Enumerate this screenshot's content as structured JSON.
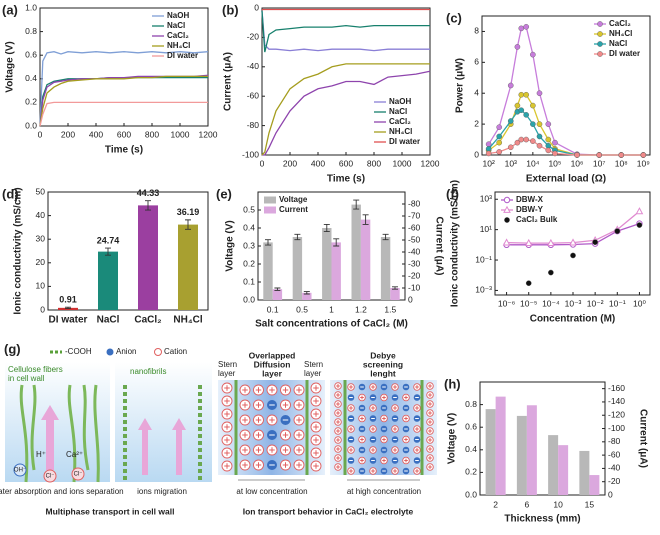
{
  "chart_data": [
    {
      "type": "line",
      "label": "(a)",
      "xlabel": "Time (s)",
      "ylabel": "Voltage (V)",
      "x": [
        0,
        20,
        50,
        100,
        150,
        200,
        300,
        400,
        500,
        600,
        700,
        800,
        900,
        1000,
        1100,
        1200
      ],
      "series": [
        {
          "name": "NaOH",
          "color": "#7f9fd6",
          "values": [
            0,
            0.55,
            0.62,
            0.63,
            0.61,
            0.63,
            0.62,
            0.63,
            0.62,
            0.63,
            0.62,
            0.63,
            0.62,
            0.63,
            0.62,
            0.63
          ]
        },
        {
          "name": "NaCl",
          "color": "#17806d",
          "values": [
            0,
            0.25,
            0.35,
            0.38,
            0.39,
            0.4,
            0.4,
            0.4,
            0.41,
            0.41,
            0.41,
            0.41,
            0.41,
            0.41,
            0.41,
            0.41
          ]
        },
        {
          "name": "CaCl₂",
          "color": "#8e44ad",
          "values": [
            0,
            0.22,
            0.33,
            0.37,
            0.38,
            0.39,
            0.4,
            0.4,
            0.41,
            0.41,
            0.42,
            0.42,
            0.42,
            0.42,
            0.42,
            0.43
          ]
        },
        {
          "name": "NH₄Cl",
          "color": "#a59d1e",
          "values": [
            0,
            0.15,
            0.28,
            0.33,
            0.36,
            0.38,
            0.39,
            0.4,
            0.4,
            0.4,
            0.41,
            0.41,
            0.42,
            0.42,
            0.42,
            0.42
          ]
        },
        {
          "name": "DI water",
          "color": "#f29a9a",
          "values": [
            0,
            0.1,
            0.19,
            0.2,
            0.2,
            0.2,
            0.2,
            0.2,
            0.2,
            0.2,
            0.2,
            0.2,
            0.2,
            0.2,
            0.2,
            0.2
          ]
        }
      ],
      "xlim": [
        0,
        1200
      ],
      "xticks": [
        0,
        200,
        400,
        600,
        800,
        1000,
        1200
      ],
      "ylim": [
        0,
        1.0
      ],
      "yticks": [
        {
          "value": 0,
          "label": "0.0"
        },
        0.2,
        0.4,
        0.6,
        0.8,
        {
          "value": 1.0,
          "label": "1.0"
        }
      ],
      "legend": "upper right"
    },
    {
      "type": "line",
      "label": "(b)",
      "xlabel": "Time (s)",
      "ylabel": "Current (μA)",
      "x": [
        0,
        20,
        50,
        100,
        200,
        300,
        400,
        500,
        600,
        700,
        800,
        900,
        1000,
        1100,
        1200
      ],
      "series": [
        {
          "name": "NaOH",
          "color": "#8a7fd6",
          "values": [
            -2,
            -25,
            -28,
            -28,
            -29,
            -28,
            -29,
            -28,
            -28,
            -28,
            -29,
            -28,
            -28,
            -28,
            -28
          ]
        },
        {
          "name": "NaCl",
          "color": "#17806d",
          "values": [
            -2,
            -30,
            -18,
            -15,
            -14,
            -13,
            -13,
            -13,
            -12,
            -13,
            -12,
            -12,
            -12,
            -12,
            -12
          ]
        },
        {
          "name": "CaCl₂",
          "color": "#8e44ad",
          "values": [
            -100,
            -100,
            -95,
            -85,
            -70,
            -60,
            -55,
            -53,
            -50,
            -50,
            -52,
            -47,
            -46,
            -45,
            -43
          ]
        },
        {
          "name": "NH₄Cl",
          "color": "#a59d1e",
          "values": [
            -100,
            -98,
            -85,
            -70,
            -55,
            -48,
            -45,
            -40,
            -38,
            -38,
            -38,
            -38,
            -38,
            -38,
            -38
          ]
        },
        {
          "name": "DI water",
          "color": "#e05050",
          "values": [
            -1,
            -1,
            -1,
            -1,
            -1,
            -1,
            -1,
            -1,
            -1,
            -1,
            -1,
            -1,
            -1,
            -1,
            -1
          ]
        }
      ],
      "xlim": [
        0,
        1200
      ],
      "xticks": [
        0,
        200,
        400,
        600,
        800,
        1000,
        1200
      ],
      "ylim": [
        -100,
        0
      ],
      "yticks": [
        -100,
        -80,
        -60,
        -40,
        -20,
        0
      ],
      "legend": "lower right"
    },
    {
      "type": "line",
      "markers": true,
      "label": "(c)",
      "xlabel": "External load (Ω)",
      "ylabel": "Power (μW)",
      "x": [
        100,
        300,
        1000,
        2000,
        3000,
        5000,
        10000,
        20000,
        50000,
        100000,
        1000000,
        10000000,
        100000000,
        1000000000
      ],
      "series": [
        {
          "name": "CaCl₂",
          "color": "#c77ddb",
          "values": [
            0.7,
            1.8,
            4.5,
            7,
            8.2,
            8.3,
            6.5,
            4,
            2,
            0.8,
            0.05,
            0,
            0,
            0
          ]
        },
        {
          "name": "NH₄Cl",
          "color": "#d9c62f",
          "values": [
            0.3,
            0.8,
            2,
            3.2,
            3.9,
            3.9,
            3.2,
            2,
            1,
            0.4,
            0,
            0,
            0,
            0
          ]
        },
        {
          "name": "NaCl",
          "color": "#2aa3aa",
          "values": [
            0.4,
            1.2,
            2.2,
            2.8,
            2.9,
            2.6,
            2,
            1.2,
            0.6,
            0.3,
            0,
            0,
            0,
            0
          ]
        },
        {
          "name": "DI water",
          "color": "#f08a8a",
          "values": [
            0.1,
            0.2,
            0.5,
            0.8,
            1,
            1,
            0.9,
            0.6,
            0.3,
            0.1,
            0,
            0,
            0,
            0
          ]
        }
      ],
      "xlog": true,
      "xlim": [
        50,
        2000000000
      ],
      "xticks": [
        {
          "value": 100,
          "label": "10²"
        },
        {
          "value": 1000,
          "label": "10³"
        },
        {
          "value": 10000,
          "label": "10⁴"
        },
        {
          "value": 100000,
          "label": "10⁵"
        },
        {
          "value": 1000000,
          "label": "10⁶"
        },
        {
          "value": 10000000,
          "label": "10⁷"
        },
        {
          "value": 100000000,
          "label": "10⁸"
        },
        {
          "value": 1000000000,
          "label": "10⁹"
        }
      ],
      "ylim": [
        0,
        9
      ],
      "yticks": [
        0,
        2,
        4,
        6,
        8
      ],
      "legend": "upper right"
    },
    {
      "type": "bar",
      "label": "(d)",
      "ylabel": "Ionic conductivity (mS/cm)",
      "categories": [
        "DI water",
        "NaCl",
        "CaCl₂",
        "NH₄Cl"
      ],
      "values": [
        0.91,
        24.74,
        44.33,
        36.19
      ],
      "errors": [
        0.3,
        1.5,
        2,
        2
      ],
      "colors": [
        "#d03030",
        "#1a8a7a",
        "#9b3fa0",
        "#a8a030"
      ],
      "ylim": [
        0,
        50
      ],
      "yticks": [
        0,
        10,
        20,
        30,
        40,
        50
      ]
    },
    {
      "type": "bar",
      "label": "(e)",
      "xlabel": "Salt concentrations of CaCl₂ (M)",
      "ylabel": "Voltage (V)",
      "y2label": "Current (μA)",
      "categories": [
        "0.1",
        "0.5",
        "1",
        "1.2",
        "1.5"
      ],
      "series": [
        {
          "name": "Voltage",
          "color": "#b8b8b8",
          "values": [
            0.32,
            0.35,
            0.4,
            0.53,
            0.35
          ],
          "errors": [
            0.015,
            0.015,
            0.02,
            0.025,
            0.015
          ]
        },
        {
          "name": "Current",
          "color": "#dba8de",
          "axis": "y2",
          "values": [
            -9,
            -6,
            -48,
            -67,
            -10
          ],
          "errors": [
            1,
            1,
            3,
            4,
            1
          ]
        }
      ],
      "ylim": [
        0,
        0.6
      ],
      "yticks": [
        {
          "value": 0,
          "label": "0.0"
        },
        0.1,
        0.2,
        0.3,
        0.4,
        0.5
      ],
      "y2lim": [
        0,
        -90
      ],
      "y2ticks": [
        0,
        -10,
        -20,
        -30,
        -40,
        -50,
        -60,
        -70,
        -80
      ],
      "legend": "upper left"
    },
    {
      "type": "scatter",
      "label": "(f)",
      "xlabel": "Concentration (M)",
      "ylabel": "Ionic conductivity (mS/cm)",
      "series": [
        {
          "name": "DBW-X",
          "color": "#b05ac8",
          "marker": "open",
          "line": true,
          "x": [
            1e-06,
            1e-05,
            0.0001,
            0.001,
            0.01,
            0.1,
            1
          ],
          "values": [
            1.0,
            1.0,
            1.0,
            1.05,
            1.2,
            8,
            25
          ]
        },
        {
          "name": "DBW-Y",
          "color": "#e08ad0",
          "marker": "triangle",
          "line": true,
          "x": [
            1e-06,
            1e-05,
            0.0001,
            0.001,
            0.01,
            0.1,
            1
          ],
          "values": [
            1.4,
            1.3,
            1.3,
            1.4,
            2.0,
            10,
            160
          ]
        },
        {
          "name": "CaCl₂ Bulk",
          "color": "#111111",
          "marker": "circle",
          "x": [
            1e-05,
            0.0001,
            0.001,
            0.01,
            0.1,
            1
          ],
          "values": [
            0.003,
            0.015,
            0.2,
            1.5,
            8,
            20
          ]
        }
      ],
      "xlog": true,
      "ylog": true,
      "xlim": [
        3e-07,
        3
      ],
      "xticks": [
        {
          "value": 1e-06,
          "label": "10⁻⁶"
        },
        {
          "value": 1e-05,
          "label": "10⁻⁵"
        },
        {
          "value": 0.0001,
          "label": "10⁻⁴"
        },
        {
          "value": 0.001,
          "label": "10⁻³"
        },
        {
          "value": 0.01,
          "label": "10⁻²"
        },
        {
          "value": 0.1,
          "label": "10⁻¹"
        },
        {
          "value": 1,
          "label": "10⁰"
        }
      ],
      "ylim": [
        0.0005,
        3000
      ],
      "yticks": [
        {
          "value": 0.001,
          "label": "10⁻³"
        },
        {
          "value": 0.1,
          "label": "10⁻¹"
        },
        {
          "value": 10,
          "label": "10¹"
        },
        {
          "value": 1000,
          "label": "10³"
        }
      ],
      "legend": "upper left"
    },
    {
      "type": "bar",
      "label": "(h)",
      "xlabel": "Thickness (mm)",
      "ylabel": "Voltage (V)",
      "y2label": "Current (μA)",
      "categories": [
        "2",
        "6",
        "10",
        "15"
      ],
      "series": [
        {
          "name": "Voltage",
          "color": "#b8b8b8",
          "values": [
            0.76,
            0.7,
            0.53,
            0.39
          ]
        },
        {
          "name": "Current",
          "color": "#dba8de",
          "axis": "y2",
          "values": [
            -148,
            -135,
            -75,
            -30
          ]
        }
      ],
      "ylim": [
        0,
        1.0
      ],
      "yticks": [
        {
          "value": 0,
          "label": "0.0"
        },
        0.2,
        0.4,
        0.6,
        0.8
      ],
      "y2lim": [
        0,
        -170
      ],
      "y2ticks": [
        0,
        -20,
        -40,
        -60,
        -80,
        -100,
        -120,
        -140,
        -160
      ]
    }
  ],
  "diagram": {
    "label": "(g)",
    "legend": [
      "-COOH",
      "Anion",
      "Cation"
    ],
    "cellulose": [
      "Cellulose fibers",
      "in cell wall"
    ],
    "nanofibrils": "nanofibrils",
    "ion_labels": [
      "H⁺",
      "Ca²⁺",
      "OH⁻",
      "Cl⁻",
      "Cl⁻"
    ],
    "caption_1": "water absorption and ions separation",
    "caption_2": "ions migration",
    "title_left": "Multiphase transport in cell wall",
    "stern_left": [
      "Stern",
      "layer"
    ],
    "overlapped": [
      "Overlapped",
      "Diffusion",
      "layer"
    ],
    "stern_right": [
      "Stern",
      "layer"
    ],
    "debye": [
      "Debye",
      "screening",
      "lenght"
    ],
    "caption_3": "at low concentration",
    "caption_4": "at high concentration",
    "title_right": "Ion transport behavior in CaCl₂ electrolyte"
  }
}
